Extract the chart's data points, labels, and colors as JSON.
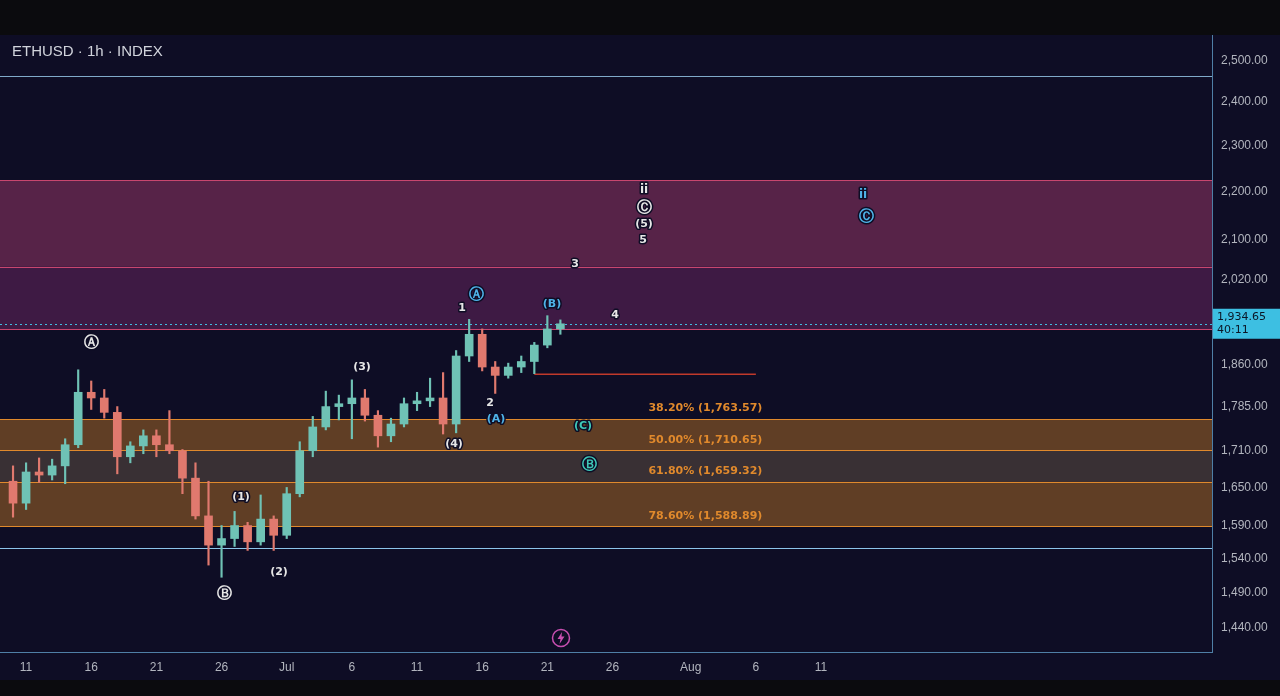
{
  "chart_data": {
    "type": "candlestick",
    "title": "ETHUSD · 1h · INDEX",
    "log": true,
    "xlim": [
      "--06-09",
      "--09-10"
    ],
    "xticks": [
      {
        "value": "--06-11",
        "label": "11"
      },
      {
        "value": "--06-16",
        "label": "16"
      },
      {
        "value": "--06-21",
        "label": "21"
      },
      {
        "value": "--06-26",
        "label": "26"
      },
      {
        "value": "--07-01",
        "label": "Jul"
      },
      {
        "value": "--07-06",
        "label": "6"
      },
      {
        "value": "--07-11",
        "label": "11"
      },
      {
        "value": "--07-16",
        "label": "16"
      },
      {
        "value": "--07-21",
        "label": "21"
      },
      {
        "value": "--07-26",
        "label": "26"
      },
      {
        "value": "--08-01",
        "label": "Aug"
      },
      {
        "value": "--08-06",
        "label": "6"
      },
      {
        "value": "--08-11",
        "label": "11"
      }
    ],
    "ylim": [
      1406,
      2562
    ],
    "yticks": [
      {
        "value": 2500,
        "label": "2,500.00"
      },
      {
        "value": 2400,
        "label": "2,400.00"
      },
      {
        "value": 2300,
        "label": "2,300.00"
      },
      {
        "value": 2200,
        "label": "2,200.00"
      },
      {
        "value": 2100,
        "label": "2,100.00"
      },
      {
        "value": 2020,
        "label": "2,020.00"
      },
      {
        "value": 1860,
        "label": "1,860.00"
      },
      {
        "value": 1785,
        "label": "1,785.00"
      },
      {
        "value": 1710,
        "label": "1,710.00"
      },
      {
        "value": 1650,
        "label": "1,650.00"
      },
      {
        "value": 1590,
        "label": "1,590.00"
      },
      {
        "value": 1540,
        "label": "1,540.00"
      },
      {
        "value": 1490,
        "label": "1,490.00"
      },
      {
        "value": 1440,
        "label": "1,440.00"
      }
    ],
    "series": [
      {
        "x": [
          "--06-10",
          "--06-11",
          "--06-12",
          "--06-13",
          "--06-14",
          "--06-15",
          "--06-16",
          "--06-17",
          "--06-18",
          "--06-19",
          "--06-20",
          "--06-21",
          "--06-22",
          "--06-23",
          "--06-24",
          "--06-25",
          "--06-26",
          "--06-27",
          "--06-28",
          "--06-29",
          "--06-30",
          "--07-01",
          "--07-02",
          "--07-03",
          "--07-04",
          "--07-05",
          "--07-06",
          "--07-07",
          "--07-08",
          "--07-09",
          "--07-10",
          "--07-11",
          "--07-12",
          "--07-13",
          "--07-14",
          "--07-15",
          "--07-16",
          "--07-17",
          "--07-18",
          "--07-19",
          "--07-20",
          "--07-21",
          "--07-22"
        ],
        "ohlc": [
          [
            1660,
            1685,
            1603,
            1625
          ],
          [
            1625,
            1690,
            1615,
            1675
          ],
          [
            1675,
            1698,
            1658,
            1670
          ],
          [
            1670,
            1696,
            1662,
            1685
          ],
          [
            1685,
            1730,
            1656,
            1720
          ],
          [
            1720,
            1850,
            1715,
            1810
          ],
          [
            1810,
            1830,
            1780,
            1800
          ],
          [
            1800,
            1815,
            1765,
            1775
          ],
          [
            1775,
            1785,
            1672,
            1700
          ],
          [
            1700,
            1725,
            1690,
            1718
          ],
          [
            1718,
            1745,
            1705,
            1735
          ],
          [
            1735,
            1745,
            1700,
            1720
          ],
          [
            1720,
            1778,
            1705,
            1710
          ],
          [
            1710,
            1712,
            1640,
            1665
          ],
          [
            1665,
            1690,
            1600,
            1605
          ],
          [
            1605,
            1660,
            1530,
            1560
          ],
          [
            1560,
            1590,
            1512,
            1570
          ],
          [
            1570,
            1612,
            1558,
            1590
          ],
          [
            1590,
            1595,
            1552,
            1565
          ],
          [
            1565,
            1638,
            1560,
            1600
          ],
          [
            1600,
            1605,
            1552,
            1575
          ],
          [
            1575,
            1650,
            1570,
            1640
          ],
          [
            1640,
            1725,
            1635,
            1710
          ],
          [
            1710,
            1768,
            1700,
            1750
          ],
          [
            1750,
            1812,
            1745,
            1785
          ],
          [
            1785,
            1805,
            1762,
            1790
          ],
          [
            1790,
            1832,
            1730,
            1800
          ],
          [
            1800,
            1815,
            1760,
            1770
          ],
          [
            1770,
            1778,
            1716,
            1735
          ],
          [
            1735,
            1765,
            1725,
            1755
          ],
          [
            1755,
            1800,
            1750,
            1790
          ],
          [
            1790,
            1810,
            1778,
            1795
          ],
          [
            1795,
            1835,
            1785,
            1800
          ],
          [
            1800,
            1845,
            1738,
            1755
          ],
          [
            1755,
            1885,
            1740,
            1875
          ],
          [
            1875,
            1943,
            1865,
            1915
          ],
          [
            1915,
            1925,
            1848,
            1855
          ],
          [
            1855,
            1865,
            1808,
            1840
          ],
          [
            1840,
            1862,
            1835,
            1855
          ],
          [
            1855,
            1875,
            1845,
            1865
          ],
          [
            1865,
            1900,
            1843,
            1895
          ],
          [
            1895,
            1950,
            1890,
            1925
          ],
          [
            1925,
            1942,
            1915,
            1934.65
          ]
        ],
        "colors": [
          "#e0796e",
          "#6fc2b5",
          "#e0796e",
          "#6fc2b5",
          "#6fc2b5",
          "#6fc2b5",
          "#e0796e",
          "#e0796e",
          "#e0796e",
          "#6fc2b5",
          "#6fc2b5",
          "#e0796e",
          "#e0796e",
          "#e0796e",
          "#e0796e",
          "#e0796e",
          "#6fc2b5",
          "#6fc2b5",
          "#e0796e",
          "#6fc2b5",
          "#e0796e",
          "#6fc2b5",
          "#6fc2b5",
          "#6fc2b5",
          "#6fc2b5",
          "#6fc2b5",
          "#6fc2b5",
          "#e0796e",
          "#e0796e",
          "#6fc2b5",
          "#6fc2b5",
          "#6fc2b5",
          "#6fc2b5",
          "#e0796e",
          "#6fc2b5",
          "#6fc2b5",
          "#e0796e",
          "#e0796e",
          "#6fc2b5",
          "#6fc2b5",
          "#6fc2b5",
          "#6fc2b5",
          "#6fc2b5"
        ]
      },
      {
        "type": "line",
        "x": [
          "--07-20",
          "--08-06"
        ],
        "values": [
          1842,
          1842
        ],
        "color": "#c0392b"
      }
    ],
    "bands": [
      {
        "axis": "y",
        "from": 2045,
        "to": 2225,
        "color": "#b23f73"
      },
      {
        "axis": "y",
        "from": 1925,
        "to": 2045,
        "color": "#7a2a6a"
      },
      {
        "axis": "y",
        "from": 1710.65,
        "to": 1763.57,
        "color": "#c67a26"
      },
      {
        "axis": "y",
        "from": 1659.32,
        "to": 1710.65,
        "color": "#6e5a46"
      },
      {
        "axis": "y",
        "from": 1588.89,
        "to": 1659.32,
        "color": "#c67a26"
      }
    ],
    "ref_lines": [
      {
        "axis": "y",
        "value": 2461,
        "color": "#7fa9c9"
      },
      {
        "axis": "y",
        "value": 1555,
        "color": "#8cc4ea"
      },
      {
        "axis": "y",
        "value": 2225,
        "color": "#c8466f"
      },
      {
        "axis": "y",
        "value": 2045,
        "color": "#c8466f"
      },
      {
        "axis": "y",
        "value": 1925,
        "color": "#c8466f"
      },
      {
        "axis": "y",
        "value": 1934.65,
        "label": "1,934.65\n40:11",
        "color": "#3dbfe2",
        "line_style": "dotted"
      },
      {
        "axis": "y",
        "value": 1763.57,
        "label": "38.20% (1,763.57)",
        "color": "#e0892c"
      },
      {
        "axis": "y",
        "value": 1710.65,
        "label": "50.00% (1,710.65)",
        "color": "#e0892c"
      },
      {
        "axis": "y",
        "value": 1659.32,
        "label": "61.80% (1,659.32)",
        "color": "#e0892c"
      },
      {
        "axis": "y",
        "value": 1588.89,
        "label": "78.60% (1,588.89)",
        "color": "#e0892c"
      }
    ],
    "annotations": [
      "Ⓐ",
      "Ⓑ",
      "(1)",
      "(2)",
      "(3)",
      "(4)",
      "Ⓐ",
      "1",
      "2",
      "(A)",
      "(B)",
      "3",
      "4",
      "ii",
      "Ⓒ",
      "(5)",
      "5",
      "ii",
      "Ⓒ",
      "(C)",
      "Ⓑ"
    ]
  }
}
